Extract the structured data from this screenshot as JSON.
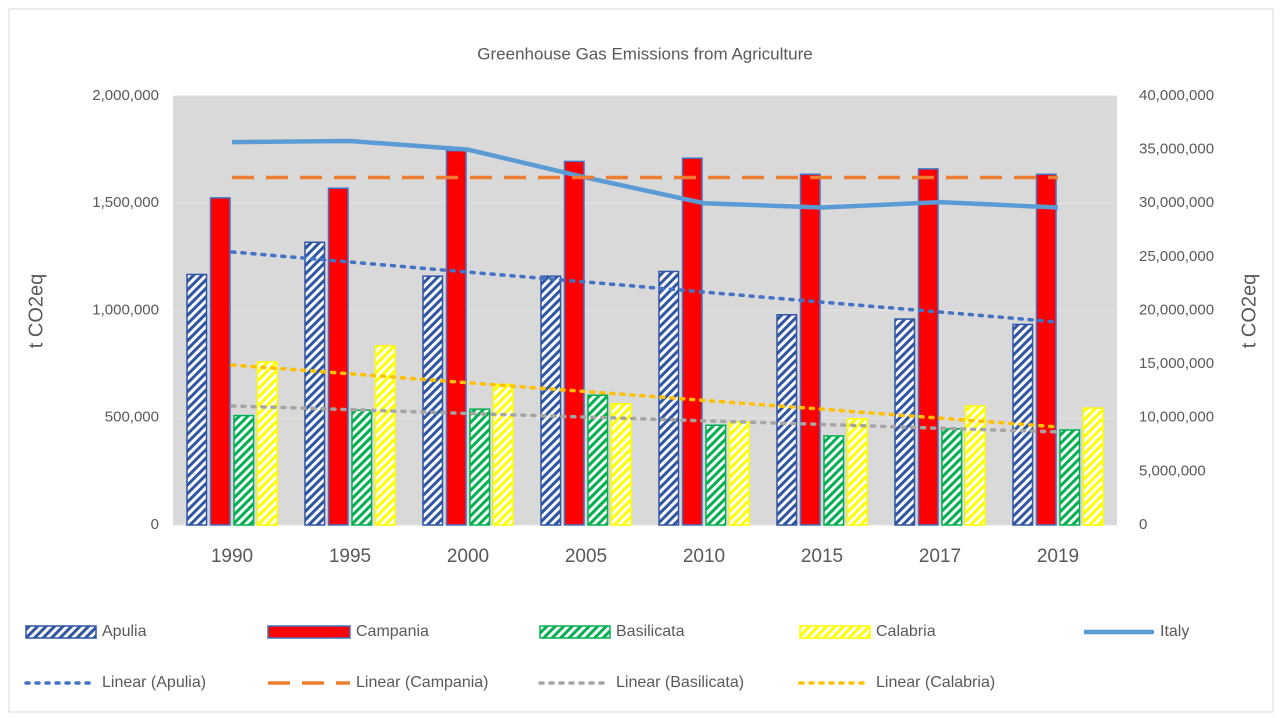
{
  "chart_data": {
    "type": "bar",
    "title": "Greenhouse Gas Emissions from Agriculture",
    "y_label": "t CO2eq",
    "y2_label": "t CO2eq",
    "categories": [
      "1990",
      "1995",
      "2000",
      "2005",
      "2010",
      "2015",
      "2017",
      "2019"
    ],
    "ylim": [
      0,
      2000000
    ],
    "yticks": [
      0,
      {
        "value": 500000,
        "label": "500,000"
      },
      {
        "value": 1000000,
        "label": "1,000,000"
      },
      {
        "value": 1500000,
        "label": "1,500,000"
      },
      {
        "value": 2000000,
        "label": "2,000,000"
      }
    ],
    "y2lim": [
      0,
      40000000
    ],
    "y2ticks": [
      0,
      {
        "value": 5000000,
        "label": "5,000,000"
      },
      {
        "value": 10000000,
        "label": "10,000,000"
      },
      {
        "value": 15000000,
        "label": "15,000,000"
      },
      {
        "value": 20000000,
        "label": "20,000,000"
      },
      {
        "value": 25000000,
        "label": "25,000,000"
      },
      {
        "value": 30000000,
        "label": "30,000,000"
      },
      {
        "value": 35000000,
        "label": "35,000,000"
      },
      {
        "value": 40000000,
        "label": "40,000,000"
      }
    ],
    "grid": true,
    "legend": "bottom",
    "series": [
      {
        "name": "Apulia",
        "type": "bar",
        "pattern": "hatch",
        "color": "#2f55a4",
        "values": [
          1168000,
          1318000,
          1160000,
          1160000,
          1182000,
          980000,
          960000,
          935000
        ]
      },
      {
        "name": "Campania",
        "type": "bar",
        "color": "#ff0000",
        "border": "#4472c4",
        "values": [
          1525000,
          1570000,
          1745000,
          1695000,
          1710000,
          1635000,
          1660000,
          1635000
        ]
      },
      {
        "name": "Basilicata",
        "type": "bar",
        "pattern": "hatch",
        "color": "#00b050",
        "values": [
          510000,
          535000,
          540000,
          605000,
          465000,
          415000,
          448000,
          443000
        ]
      },
      {
        "name": "Calabria",
        "type": "bar",
        "pattern": "hatch",
        "color": "#ffff00",
        "values": [
          760000,
          835000,
          655000,
          565000,
          480000,
          495000,
          555000,
          545000
        ]
      },
      {
        "name": "Italy",
        "type": "line",
        "axis": "y2",
        "style": "solid",
        "color": "#5b9bd5",
        "values": [
          35700000,
          35800000,
          35000000,
          32400000,
          30000000,
          29600000,
          30100000,
          29600000
        ]
      },
      {
        "name": "Linear (Apulia)",
        "type": "line",
        "style": "dotted",
        "color": "#4472c4",
        "values": [
          1273000,
          1226000,
          1179000,
          1133000,
          1086000,
          1039000,
          993000,
          946000
        ]
      },
      {
        "name": "Linear (Campania)",
        "type": "line",
        "style": "dashed",
        "color": "#ed7d31",
        "values": [
          1620000,
          1620000,
          1620000,
          1620000,
          1620000,
          1620000,
          1620000,
          1620000
        ]
      },
      {
        "name": "Linear (Basilicata)",
        "type": "line",
        "style": "dotted",
        "color": "#a5a5a5",
        "values": [
          555000,
          538000,
          520000,
          503000,
          486000,
          469000,
          451000,
          434000
        ]
      },
      {
        "name": "Linear (Calabria)",
        "type": "line",
        "style": "dotted",
        "color": "#ffc000",
        "values": [
          746000,
          705000,
          663000,
          622000,
          581000,
          540000,
          498000,
          457000
        ]
      }
    ]
  }
}
